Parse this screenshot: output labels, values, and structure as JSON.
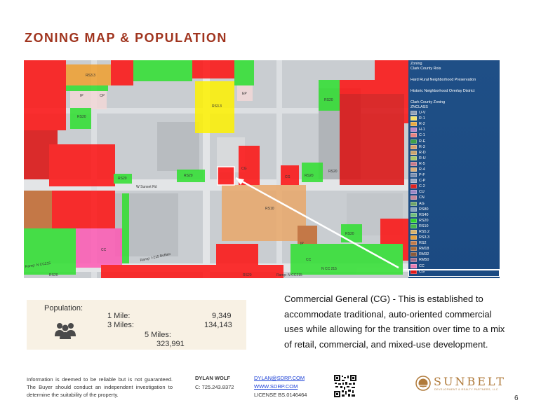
{
  "title": "ZONING MAP & POPULATION",
  "map": {
    "labels": [
      "RS3.3",
      "IP",
      "CP",
      "RS20",
      "RS3.3",
      "EP",
      "RS20",
      "RS20",
      "RS20",
      "CG",
      "CG",
      "RS20",
      "RS20",
      "RS10",
      "RS20",
      "CC",
      "IP",
      "CC",
      "RS20",
      "RS20"
    ],
    "streets": [
      "W Sunset Rd",
      "Ramp: I-215 Buffalo",
      "Ramp: N CC215",
      "N CC 215",
      "Ramp: N CC215"
    ]
  },
  "legend": {
    "header": [
      "Zoning",
      "Clark County Rois"
    ],
    "layers": [
      "Hard Rural Neighborhood Preservation",
      "Historic Neighborhood Overlay District",
      "Clark County Zoning"
    ],
    "class_title": "ZNCLASS",
    "classes": [
      {
        "code": "U-V",
        "color": "#8fa0b5"
      },
      {
        "code": "R-1",
        "color": "#f2e36a"
      },
      {
        "code": "R-2",
        "color": "#e8a940"
      },
      {
        "code": "H-1",
        "color": "#b886c8"
      },
      {
        "code": "C-1",
        "color": "#e8817f"
      },
      {
        "code": "R-E",
        "color": "#3ea04a"
      },
      {
        "code": "R-3",
        "color": "#d7a06a"
      },
      {
        "code": "R-D",
        "color": "#c9a36d"
      },
      {
        "code": "R-U",
        "color": "#a9c86a"
      },
      {
        "code": "R-5",
        "color": "#c77a8a"
      },
      {
        "code": "R-4",
        "color": "#dcb07a"
      },
      {
        "code": "P-F",
        "color": "#7b8fb0"
      },
      {
        "code": "C-P",
        "color": "#9aa9c4"
      },
      {
        "code": "C-2",
        "color": "#e02020"
      },
      {
        "code": "CU",
        "color": "#9a86c4"
      },
      {
        "code": "CN",
        "color": "#c4869a"
      },
      {
        "code": "AG",
        "color": "#6ea46a"
      },
      {
        "code": "RS80",
        "color": "#8aa6c0"
      },
      {
        "code": "RS40",
        "color": "#6fbf7a"
      },
      {
        "code": "RS20",
        "color": "#2fd12f"
      },
      {
        "code": "RS10",
        "color": "#43b54a"
      },
      {
        "code": "RS5.2",
        "color": "#d6b16a"
      },
      {
        "code": "RS3.3",
        "color": "#e6a03a"
      },
      {
        "code": "RS2",
        "color": "#c07a4a"
      },
      {
        "code": "RM18",
        "color": "#a86a3a"
      },
      {
        "code": "RM32",
        "color": "#8a5a3a"
      },
      {
        "code": "RM50",
        "color": "#9a6a8a"
      },
      {
        "code": "CC",
        "color": "#e87ab0"
      },
      {
        "code": "CG",
        "color": "#e01818"
      }
    ]
  },
  "population": {
    "label": "Population:",
    "rows": [
      {
        "label": "1 Mile:",
        "value": "9,349"
      },
      {
        "label": "3 Miles:",
        "value": "134,143"
      },
      {
        "label": "5 Miles:",
        "value": "323,991"
      }
    ]
  },
  "description": "Commercial General (CG)  - This is established to accommodate traditional, auto-oriented commercial uses while allowing for the transition over time to a mix of retail, commercial, and mixed-use development.",
  "footer": {
    "disclaimer": "Information is deemed to be reliable but is not guaranteed. The Buyer should conduct an independent investigation to  determine the suitability of the property.",
    "agent_name": "DYLAN WOLF",
    "agent_phone": "C: 725.243.8372",
    "email": "DYLAN@SDRP.COM",
    "website": "WWW.SDRP.COM",
    "license": "LICENSE BS.0146464",
    "logo_word": "SUNBELT",
    "logo_sub": "DEVELOPMENT & REALTY PARTNERS, LLC",
    "page_number": "6"
  }
}
